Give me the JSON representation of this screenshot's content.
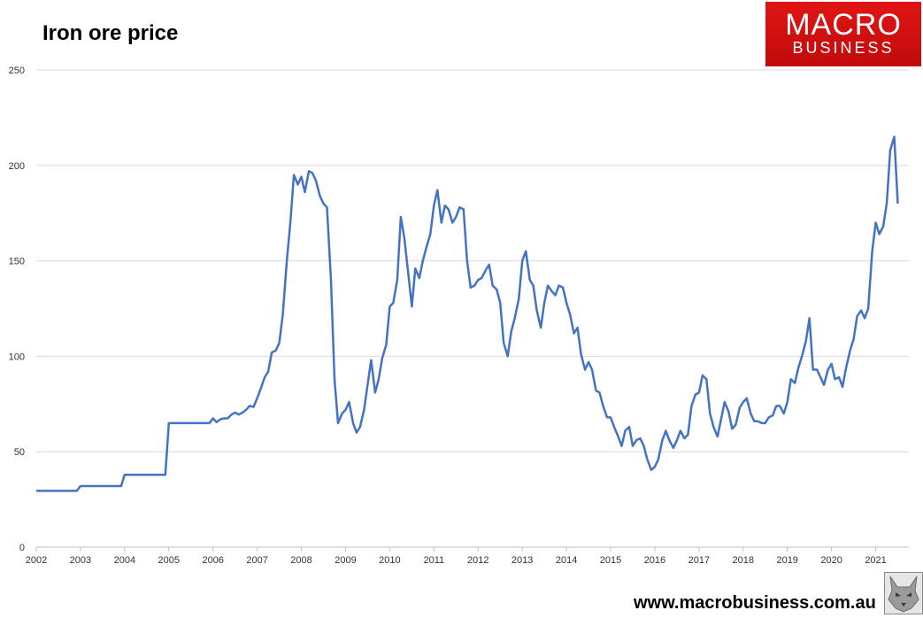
{
  "title": "Iron ore price",
  "logo": {
    "line1": "MACRO",
    "line2": "BUSINESS",
    "color": "#d81313"
  },
  "website": "www.macrobusiness.com.au",
  "badge_icon": "wolf-icon",
  "chart_data": {
    "type": "line",
    "title": "Iron ore price",
    "xlabel": "",
    "ylabel": "",
    "ylim": [
      0,
      250
    ],
    "xlim": [
      2002,
      2021.75
    ],
    "grid": "horizontal",
    "x_ticks": [
      "2002",
      "2003",
      "2004",
      "2005",
      "2006",
      "2007",
      "2008",
      "2009",
      "2010",
      "2011",
      "2012",
      "2013",
      "2014",
      "2015",
      "2016",
      "2017",
      "2018",
      "2019",
      "2020",
      "2021"
    ],
    "y_ticks": [
      "0",
      "50",
      "100",
      "150",
      "200",
      "250"
    ],
    "line_color": "#4472c4",
    "series": [
      {
        "name": "",
        "points": [
          [
            2002.0,
            29.5
          ],
          [
            2002.92,
            29.5
          ],
          [
            2003.0,
            32.0
          ],
          [
            2003.92,
            32.0
          ],
          [
            2004.0,
            37.9
          ],
          [
            2004.92,
            37.9
          ],
          [
            2005.0,
            65.0
          ],
          [
            2005.92,
            65.0
          ],
          [
            2006.0,
            67.5
          ],
          [
            2006.08,
            65.5
          ],
          [
            2006.17,
            67.0
          ],
          [
            2006.25,
            67.5
          ],
          [
            2006.33,
            67.5
          ],
          [
            2006.42,
            69.5
          ],
          [
            2006.5,
            70.5
          ],
          [
            2006.58,
            69.5
          ],
          [
            2006.67,
            70.5
          ],
          [
            2006.75,
            72.0
          ],
          [
            2006.83,
            74.0
          ],
          [
            2006.92,
            73.5
          ],
          [
            2007.0,
            78.0
          ],
          [
            2007.08,
            83.0
          ],
          [
            2007.17,
            89.0
          ],
          [
            2007.25,
            92.0
          ],
          [
            2007.33,
            102.0
          ],
          [
            2007.42,
            103.0
          ],
          [
            2007.5,
            107.0
          ],
          [
            2007.58,
            122.0
          ],
          [
            2007.67,
            150.0
          ],
          [
            2007.75,
            170.0
          ],
          [
            2007.83,
            195.0
          ],
          [
            2007.92,
            190.0
          ],
          [
            2008.0,
            194.0
          ],
          [
            2008.08,
            186.0
          ],
          [
            2008.17,
            197.0
          ],
          [
            2008.25,
            196.0
          ],
          [
            2008.33,
            192.0
          ],
          [
            2008.42,
            184.0
          ],
          [
            2008.5,
            180.0
          ],
          [
            2008.58,
            178.0
          ],
          [
            2008.67,
            140.0
          ],
          [
            2008.75,
            88.0
          ],
          [
            2008.83,
            65.0
          ],
          [
            2008.92,
            70.0
          ],
          [
            2009.0,
            72.0
          ],
          [
            2009.08,
            76.0
          ],
          [
            2009.17,
            65.0
          ],
          [
            2009.25,
            60.0
          ],
          [
            2009.33,
            63.0
          ],
          [
            2009.42,
            72.0
          ],
          [
            2009.5,
            85.0
          ],
          [
            2009.58,
            98.0
          ],
          [
            2009.67,
            81.0
          ],
          [
            2009.75,
            88.0
          ],
          [
            2009.83,
            99.0
          ],
          [
            2009.92,
            106.0
          ],
          [
            2010.0,
            126.0
          ],
          [
            2010.08,
            128.0
          ],
          [
            2010.17,
            140.0
          ],
          [
            2010.25,
            173.0
          ],
          [
            2010.33,
            162.0
          ],
          [
            2010.42,
            143.0
          ],
          [
            2010.5,
            126.0
          ],
          [
            2010.58,
            146.0
          ],
          [
            2010.67,
            141.0
          ],
          [
            2010.75,
            150.0
          ],
          [
            2010.83,
            157.0
          ],
          [
            2010.92,
            164.0
          ],
          [
            2011.0,
            179.0
          ],
          [
            2011.08,
            187.0
          ],
          [
            2011.17,
            170.0
          ],
          [
            2011.25,
            179.0
          ],
          [
            2011.33,
            177.0
          ],
          [
            2011.42,
            170.0
          ],
          [
            2011.5,
            173.0
          ],
          [
            2011.58,
            178.0
          ],
          [
            2011.67,
            177.0
          ],
          [
            2011.75,
            150.0
          ],
          [
            2011.83,
            136.0
          ],
          [
            2011.92,
            137.0
          ],
          [
            2012.0,
            140.0
          ],
          [
            2012.08,
            141.0
          ],
          [
            2012.17,
            145.0
          ],
          [
            2012.25,
            148.0
          ],
          [
            2012.33,
            137.0
          ],
          [
            2012.42,
            135.0
          ],
          [
            2012.5,
            128.0
          ],
          [
            2012.58,
            107.0
          ],
          [
            2012.67,
            100.0
          ],
          [
            2012.75,
            113.0
          ],
          [
            2012.83,
            120.0
          ],
          [
            2012.92,
            130.0
          ],
          [
            2013.0,
            150.0
          ],
          [
            2013.08,
            155.0
          ],
          [
            2013.17,
            140.0
          ],
          [
            2013.25,
            137.0
          ],
          [
            2013.33,
            124.0
          ],
          [
            2013.42,
            115.0
          ],
          [
            2013.5,
            128.0
          ],
          [
            2013.58,
            137.0
          ],
          [
            2013.67,
            134.0
          ],
          [
            2013.75,
            132.0
          ],
          [
            2013.83,
            137.0
          ],
          [
            2013.92,
            136.0
          ],
          [
            2014.0,
            128.0
          ],
          [
            2014.08,
            122.0
          ],
          [
            2014.17,
            112.0
          ],
          [
            2014.25,
            115.0
          ],
          [
            2014.33,
            101.0
          ],
          [
            2014.42,
            93.0
          ],
          [
            2014.5,
            97.0
          ],
          [
            2014.58,
            93.0
          ],
          [
            2014.67,
            82.0
          ],
          [
            2014.75,
            81.0
          ],
          [
            2014.83,
            74.0
          ],
          [
            2014.92,
            68.0
          ],
          [
            2015.0,
            68.0
          ],
          [
            2015.08,
            63.0
          ],
          [
            2015.17,
            58.0
          ],
          [
            2015.25,
            53.0
          ],
          [
            2015.33,
            61.0
          ],
          [
            2015.42,
            63.0
          ],
          [
            2015.5,
            53.0
          ],
          [
            2015.58,
            56.0
          ],
          [
            2015.67,
            57.0
          ],
          [
            2015.75,
            53.0
          ],
          [
            2015.83,
            46.0
          ],
          [
            2015.92,
            40.5
          ],
          [
            2016.0,
            42.0
          ],
          [
            2016.08,
            46.0
          ],
          [
            2016.17,
            56.0
          ],
          [
            2016.25,
            61.0
          ],
          [
            2016.33,
            56.0
          ],
          [
            2016.42,
            52.0
          ],
          [
            2016.5,
            56.0
          ],
          [
            2016.58,
            61.0
          ],
          [
            2016.67,
            57.0
          ],
          [
            2016.75,
            59.0
          ],
          [
            2016.83,
            74.0
          ],
          [
            2016.92,
            80.0
          ],
          [
            2017.0,
            81.0
          ],
          [
            2017.08,
            90.0
          ],
          [
            2017.17,
            88.0
          ],
          [
            2017.25,
            70.0
          ],
          [
            2017.33,
            63.0
          ],
          [
            2017.42,
            58.0
          ],
          [
            2017.5,
            67.0
          ],
          [
            2017.58,
            76.0
          ],
          [
            2017.67,
            71.0
          ],
          [
            2017.75,
            62.0
          ],
          [
            2017.83,
            64.0
          ],
          [
            2017.92,
            73.0
          ],
          [
            2018.0,
            76.0
          ],
          [
            2018.08,
            78.0
          ],
          [
            2018.17,
            70.0
          ],
          [
            2018.25,
            66.0
          ],
          [
            2018.33,
            66.0
          ],
          [
            2018.42,
            65.0
          ],
          [
            2018.5,
            65.0
          ],
          [
            2018.58,
            68.0
          ],
          [
            2018.67,
            69.0
          ],
          [
            2018.75,
            74.0
          ],
          [
            2018.83,
            74.0
          ],
          [
            2018.92,
            70.0
          ],
          [
            2019.0,
            76.0
          ],
          [
            2019.08,
            88.0
          ],
          [
            2019.17,
            86.0
          ],
          [
            2019.25,
            94.0
          ],
          [
            2019.33,
            100.0
          ],
          [
            2019.42,
            108.0
          ],
          [
            2019.5,
            120.0
          ],
          [
            2019.58,
            93.0
          ],
          [
            2019.67,
            93.0
          ],
          [
            2019.75,
            89.0
          ],
          [
            2019.83,
            85.0
          ],
          [
            2019.92,
            93.0
          ],
          [
            2020.0,
            96.0
          ],
          [
            2020.08,
            88.0
          ],
          [
            2020.17,
            89.0
          ],
          [
            2020.25,
            84.0
          ],
          [
            2020.33,
            94.0
          ],
          [
            2020.42,
            103.0
          ],
          [
            2020.5,
            109.0
          ],
          [
            2020.58,
            121.0
          ],
          [
            2020.67,
            124.0
          ],
          [
            2020.75,
            120.0
          ],
          [
            2020.83,
            125.0
          ],
          [
            2020.92,
            155.0
          ],
          [
            2021.0,
            170.0
          ],
          [
            2021.08,
            164.0
          ],
          [
            2021.17,
            168.0
          ],
          [
            2021.25,
            180.0
          ],
          [
            2021.33,
            208.0
          ],
          [
            2021.42,
            215.0
          ],
          [
            2021.5,
            180.0
          ]
        ]
      }
    ]
  }
}
